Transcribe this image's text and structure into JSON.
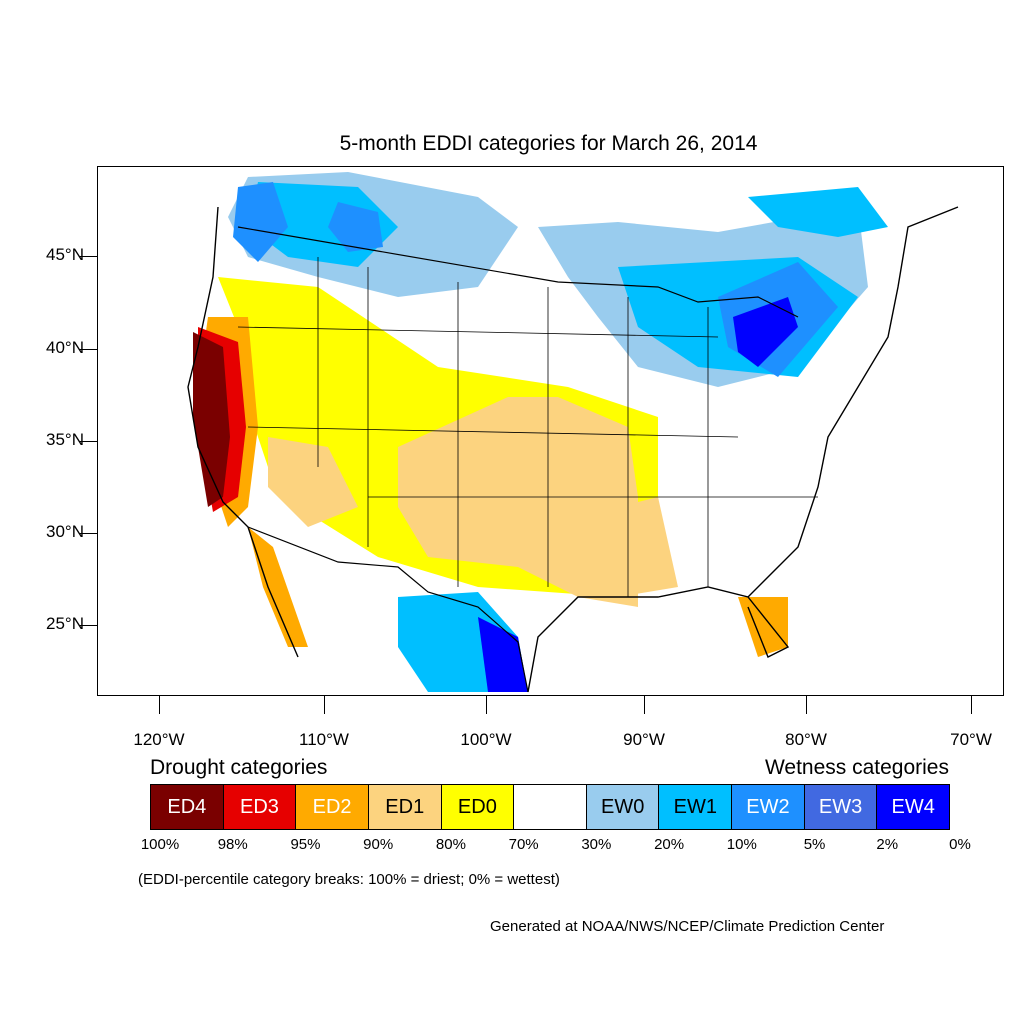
{
  "title": "5-month EDDI categories for March 26, 2014",
  "axes": {
    "lat_ticks": [
      "45°N",
      "40°N",
      "35°N",
      "30°N",
      "25°N"
    ],
    "lon_ticks": [
      "120°W",
      "110°W",
      "100°W",
      "90°W",
      "80°W",
      "70°W"
    ]
  },
  "legend": {
    "drought_heading": "Drought categories",
    "wetness_heading": "Wetness categories",
    "categories": [
      {
        "label": "ED4",
        "color": "#7a0000",
        "text_color": "#ffffff"
      },
      {
        "label": "ED3",
        "color": "#e60000",
        "text_color": "#ffffff"
      },
      {
        "label": "ED2",
        "color": "#ffaa00",
        "text_color": "#ffffff"
      },
      {
        "label": "ED1",
        "color": "#fcd37f",
        "text_color": "#000000"
      },
      {
        "label": "ED0",
        "color": "#ffff00",
        "text_color": "#000000"
      },
      {
        "label": "",
        "color": "#ffffff",
        "text_color": "#000000"
      },
      {
        "label": "EW0",
        "color": "#99ccee",
        "text_color": "#000000"
      },
      {
        "label": "EW1",
        "color": "#00bfff",
        "text_color": "#000000"
      },
      {
        "label": "EW2",
        "color": "#1e90ff",
        "text_color": "#ffffff"
      },
      {
        "label": "EW3",
        "color": "#4169e1",
        "text_color": "#ffffff"
      },
      {
        "label": "EW4",
        "color": "#0000ff",
        "text_color": "#ffffff"
      }
    ],
    "breaks": [
      "100%",
      "98%",
      "95%",
      "90%",
      "80%",
      "70%",
      "30%",
      "20%",
      "10%",
      "5%",
      "2%",
      "0%"
    ]
  },
  "note": "(EDDI-percentile category breaks: 100% = driest; 0% = wettest)",
  "credit": "Generated at NOAA/NWS/NCEP/Climate Prediction Center"
}
